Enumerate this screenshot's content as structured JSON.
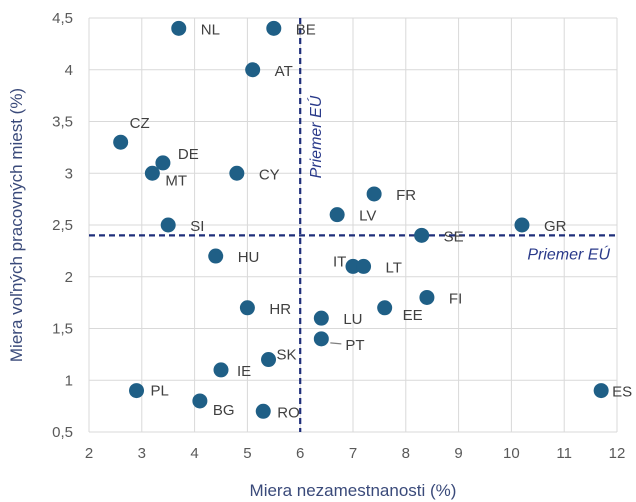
{
  "chart_data": {
    "type": "scatter",
    "xlabel": "Miera nezamestnanosti (%)",
    "ylabel": "Miera voľných pracovných miest (%)",
    "xlim": [
      2,
      12
    ],
    "ylim": [
      0.5,
      4.5
    ],
    "x_ticks": [
      "2",
      "3",
      "4",
      "5",
      "6",
      "7",
      "8",
      "9",
      "10",
      "11",
      "12"
    ],
    "y_ticks": [
      "0,5",
      "1",
      "1,5",
      "2",
      "2,5",
      "3",
      "3,5",
      "4",
      "4,5"
    ],
    "grid": true,
    "marker_color": "#1f5f86",
    "highlight_color": "#c00000",
    "average_line_color": "#1f2f7a",
    "eu_average": {
      "x": 6,
      "y": 2.4,
      "label": "Priemer EÚ"
    },
    "points": [
      {
        "label": "NL",
        "x": 3.7,
        "y": 4.4
      },
      {
        "label": "BE",
        "x": 5.5,
        "y": 4.4
      },
      {
        "label": "AT",
        "x": 5.1,
        "y": 4.0
      },
      {
        "label": "CZ",
        "x": 2.6,
        "y": 3.3
      },
      {
        "label": "DE",
        "x": 3.4,
        "y": 3.1
      },
      {
        "label": "MT",
        "x": 3.2,
        "y": 3.0
      },
      {
        "label": "CY",
        "x": 4.8,
        "y": 3.0
      },
      {
        "label": "FR",
        "x": 7.4,
        "y": 2.8
      },
      {
        "label": "LV",
        "x": 6.7,
        "y": 2.6
      },
      {
        "label": "SI",
        "x": 3.5,
        "y": 2.5
      },
      {
        "label": "GR",
        "x": 10.2,
        "y": 2.5
      },
      {
        "label": "SE",
        "x": 8.3,
        "y": 2.4
      },
      {
        "label": "HU",
        "x": 4.4,
        "y": 2.2
      },
      {
        "label": "IT",
        "x": 7.0,
        "y": 2.1
      },
      {
        "label": "LT",
        "x": 7.2,
        "y": 2.1
      },
      {
        "label": "FI",
        "x": 8.4,
        "y": 1.8
      },
      {
        "label": "HR",
        "x": 5.0,
        "y": 1.7
      },
      {
        "label": "EE",
        "x": 7.6,
        "y": 1.7
      },
      {
        "label": "LU",
        "x": 6.4,
        "y": 1.6
      },
      {
        "label": "PT",
        "x": 6.4,
        "y": 1.4
      },
      {
        "label": "SK",
        "x": 5.4,
        "y": 1.2,
        "highlight": true
      },
      {
        "label": "IE",
        "x": 4.5,
        "y": 1.1
      },
      {
        "label": "PL",
        "x": 2.9,
        "y": 0.9
      },
      {
        "label": "ES",
        "x": 11.7,
        "y": 0.9
      },
      {
        "label": "BG",
        "x": 4.1,
        "y": 0.8
      },
      {
        "label": "RO",
        "x": 5.3,
        "y": 0.7
      }
    ]
  }
}
